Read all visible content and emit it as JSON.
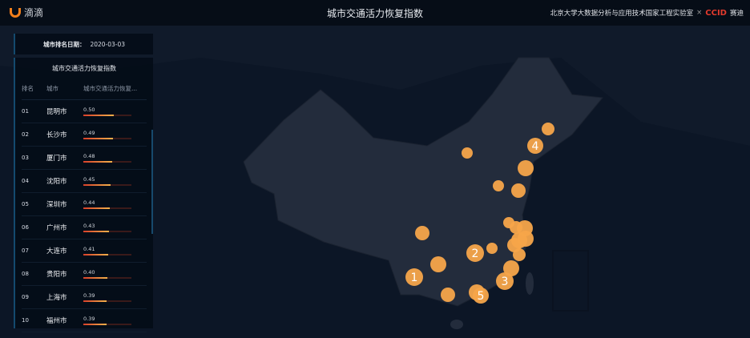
{
  "header": {
    "brand": "滴滴",
    "title": "城市交通活力恢复指数",
    "partner": "北京大学大数据分析与应用技术国家工程实验室",
    "separator": "×",
    "partner_logo": "CCID",
    "partner_name": "赛迪"
  },
  "date_panel": {
    "label": "城市排名日期：",
    "value": "2020-03-03"
  },
  "ranking": {
    "title": "城市交通活力恢复指数",
    "columns": [
      "排名",
      "城市",
      "城市交通活力恢复..."
    ],
    "bar_max": 0.8,
    "rows": [
      {
        "rank": "01",
        "city": "昆明市",
        "value": "0.50"
      },
      {
        "rank": "02",
        "city": "长沙市",
        "value": "0.49"
      },
      {
        "rank": "03",
        "city": "厦门市",
        "value": "0.48"
      },
      {
        "rank": "04",
        "city": "沈阳市",
        "value": "0.45"
      },
      {
        "rank": "05",
        "city": "深圳市",
        "value": "0.44"
      },
      {
        "rank": "06",
        "city": "广州市",
        "value": "0.43"
      },
      {
        "rank": "07",
        "city": "大连市",
        "value": "0.41"
      },
      {
        "rank": "08",
        "city": "贵阳市",
        "value": "0.40"
      },
      {
        "rank": "09",
        "city": "上海市",
        "value": "0.39"
      },
      {
        "rank": "10",
        "city": "福州市",
        "value": "0.39"
      }
    ]
  },
  "map": {
    "bubble_color": "#f7a54a",
    "land_color": "#232c3c",
    "labels": [
      "1",
      "2",
      "3",
      "4",
      "5"
    ]
  },
  "colors": {
    "accent": "#f27f1b",
    "bar_start": "#d8402a",
    "bar_end": "#f2b04a"
  }
}
